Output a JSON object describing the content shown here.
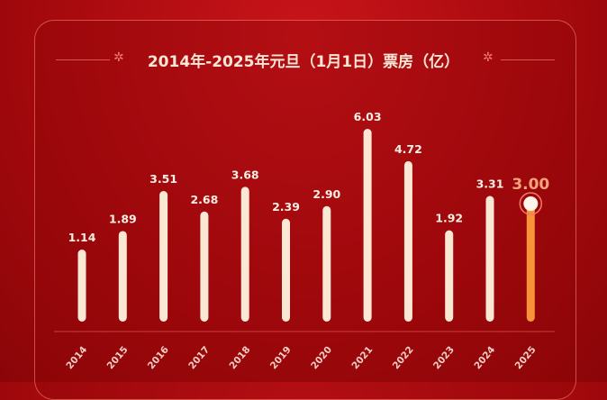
{
  "chart_data": {
    "type": "bar",
    "title": "2014年-2025年元旦（1月1日）票房（亿）",
    "categories": [
      "2014",
      "2015",
      "2016",
      "2017",
      "2018",
      "2019",
      "2020",
      "2021",
      "2022",
      "2023",
      "2024",
      "2025"
    ],
    "values": [
      1.14,
      1.89,
      3.51,
      2.68,
      3.68,
      2.39,
      2.9,
      6.03,
      4.72,
      1.92,
      3.31,
      3.0
    ],
    "value_labels": [
      "1.14",
      "1.89",
      "3.51",
      "2.68",
      "3.68",
      "2.39",
      "2.90",
      "6.03",
      "4.72",
      "1.92",
      "3.31",
      "3.00"
    ],
    "highlight_category": "2025",
    "grid": false,
    "colors": {
      "bar": "#fbe8d4",
      "highlight": "#f7943a",
      "highlight_label": "#f6a27a",
      "background": "#b10c10"
    }
  }
}
